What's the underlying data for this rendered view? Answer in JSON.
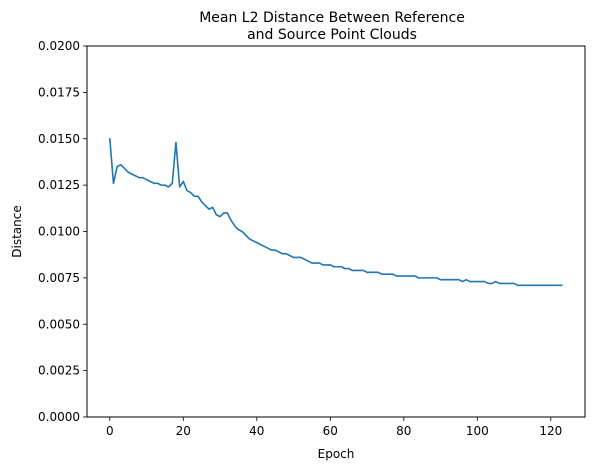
{
  "chart_data": {
    "type": "line",
    "title": [
      "Mean L2 Distance Between Reference",
      "and Source Point Clouds"
    ],
    "xlabel": "Epoch",
    "ylabel": "Distance",
    "xlim": [
      -6.2,
      129.3
    ],
    "ylim": [
      0,
      0.02
    ],
    "xticks": [
      0,
      20,
      40,
      60,
      80,
      100,
      120
    ],
    "xtick_labels": [
      "0",
      "20",
      "40",
      "60",
      "80",
      "100",
      "120"
    ],
    "yticks": [
      0,
      0.0025,
      0.005,
      0.0075,
      0.01,
      0.0125,
      0.015,
      0.0175,
      0.02
    ],
    "ytick_labels": [
      "0.0000",
      "0.0025",
      "0.0050",
      "0.0075",
      "0.0100",
      "0.0125",
      "0.0150",
      "0.0175",
      "0.0200"
    ],
    "grid": false,
    "legend": "none",
    "series": [
      {
        "color": "#1f77b4",
        "x": [
          0,
          1,
          2,
          3,
          4,
          5,
          6,
          7,
          8,
          9,
          10,
          11,
          12,
          13,
          14,
          15,
          16,
          17,
          18,
          19,
          20,
          21,
          22,
          23,
          24,
          25,
          26,
          27,
          28,
          29,
          30,
          31,
          32,
          33,
          34,
          35,
          36,
          37,
          38,
          39,
          40,
          41,
          42,
          43,
          44,
          45,
          46,
          47,
          48,
          49,
          50,
          51,
          52,
          53,
          54,
          55,
          56,
          57,
          58,
          59,
          60,
          61,
          62,
          63,
          64,
          65,
          66,
          67,
          68,
          69,
          70,
          71,
          72,
          73,
          74,
          75,
          76,
          77,
          78,
          79,
          80,
          81,
          82,
          83,
          84,
          85,
          86,
          87,
          88,
          89,
          90,
          91,
          92,
          93,
          94,
          95,
          96,
          97,
          98,
          99,
          100,
          101,
          102,
          103,
          104,
          105,
          106,
          107,
          108,
          109,
          110,
          111,
          112,
          113,
          114,
          115,
          116,
          117,
          118,
          119,
          120,
          121,
          122,
          123
        ],
        "y": [
          0.015,
          0.0126,
          0.0135,
          0.0136,
          0.0134,
          0.0132,
          0.0131,
          0.013,
          0.0129,
          0.0129,
          0.0128,
          0.0127,
          0.0126,
          0.0126,
          0.0125,
          0.0125,
          0.0124,
          0.0126,
          0.0148,
          0.0124,
          0.0127,
          0.0122,
          0.0121,
          0.0119,
          0.0119,
          0.0116,
          0.0114,
          0.0112,
          0.0113,
          0.0109,
          0.0108,
          0.011,
          0.011,
          0.0106,
          0.0103,
          0.0101,
          0.01,
          0.0098,
          0.0096,
          0.0095,
          0.0094,
          0.0093,
          0.0092,
          0.0091,
          0.009,
          0.009,
          0.0089,
          0.0088,
          0.0088,
          0.0087,
          0.0086,
          0.0086,
          0.0086,
          0.0085,
          0.0084,
          0.0083,
          0.0083,
          0.0083,
          0.0082,
          0.0082,
          0.0082,
          0.0081,
          0.0081,
          0.0081,
          0.008,
          0.008,
          0.0079,
          0.0079,
          0.0079,
          0.0079,
          0.0078,
          0.0078,
          0.0078,
          0.0078,
          0.0077,
          0.0077,
          0.0077,
          0.0077,
          0.0076,
          0.0076,
          0.0076,
          0.0076,
          0.0076,
          0.0076,
          0.0075,
          0.0075,
          0.0075,
          0.0075,
          0.0075,
          0.0075,
          0.0074,
          0.0074,
          0.0074,
          0.0074,
          0.0074,
          0.0074,
          0.0073,
          0.0074,
          0.0073,
          0.0073,
          0.0073,
          0.0073,
          0.0073,
          0.0072,
          0.0072,
          0.0073,
          0.0072,
          0.0072,
          0.0072,
          0.0072,
          0.0072,
          0.0071,
          0.0071,
          0.0071,
          0.0071,
          0.0071,
          0.0071,
          0.0071,
          0.0071,
          0.0071,
          0.0071,
          0.0071,
          0.0071,
          0.0071
        ]
      }
    ]
  }
}
